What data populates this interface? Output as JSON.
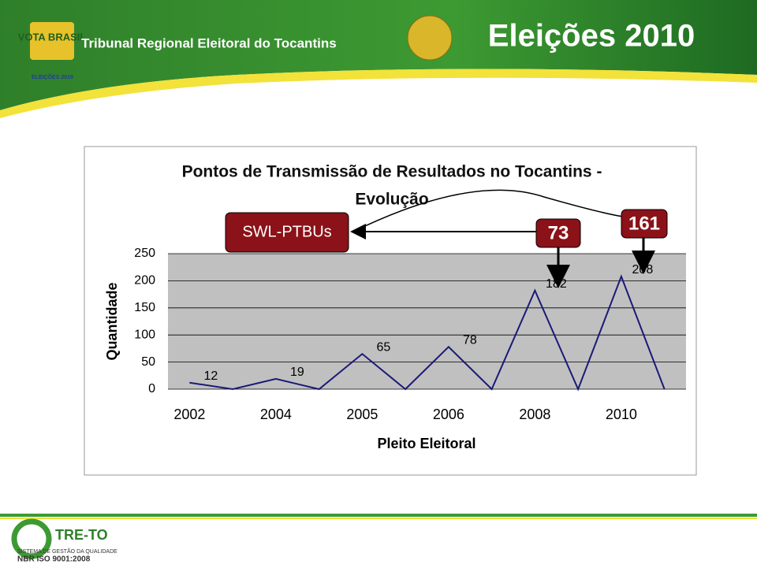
{
  "header": {
    "org": "Tribunal Regional Eleitoral do Tocantins",
    "banner": "Eleições 2010",
    "logo": "VOTA BRASIL",
    "logo_sub": "ELEIÇÕES 2010"
  },
  "footer": {
    "brand": "TRE-TO",
    "system": "SISTEMA DE GESTÃO DA QUALIDADE",
    "cert": "NBR ISO 9001:2008"
  },
  "chart_data": {
    "type": "line",
    "title": [
      "Pontos de Transmissão de Resultados no Tocantins -",
      "Evolução"
    ],
    "ylabel": "Quantidade",
    "xlabel": "Pleito Eleitoral",
    "categories": [
      "2002",
      null,
      "2004",
      null,
      "2005",
      null,
      "2006",
      null,
      "2008",
      null,
      "2010",
      null
    ],
    "values": [
      12,
      0,
      19,
      0,
      65,
      0,
      78,
      0,
      182,
      0,
      208,
      0
    ],
    "color": "#1a1a78",
    "ylim": [
      0,
      250
    ],
    "yticks": [
      0,
      50,
      100,
      150,
      200,
      250
    ],
    "grid": true,
    "annotations": [
      "SWL-PTBUs",
      "73",
      "161"
    ]
  }
}
